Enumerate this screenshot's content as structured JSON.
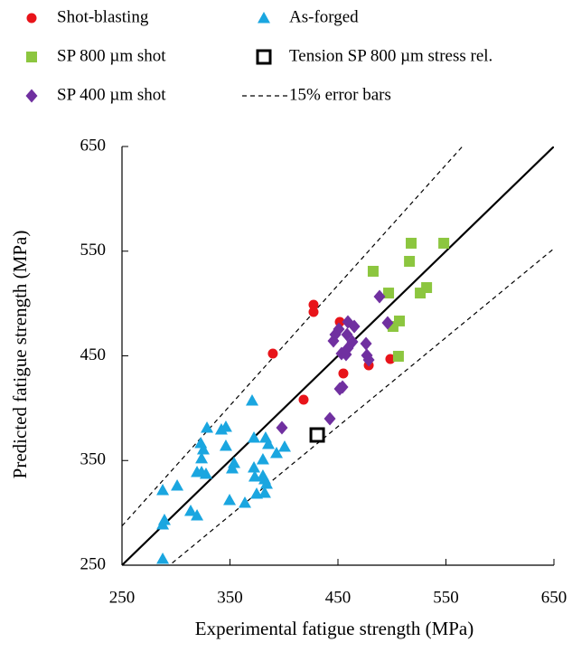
{
  "chart_data": {
    "type": "scatter",
    "x_label": "Experimental fatigue strength (MPa)",
    "y_label": "Predicted fatigue strength (MPa)",
    "xlim": [
      250,
      650
    ],
    "ylim": [
      250,
      650
    ],
    "xticks": [
      250,
      350,
      450,
      550,
      650
    ],
    "yticks": [
      250,
      350,
      450,
      550,
      650
    ],
    "error_band": {
      "name": "15% error bars",
      "percent": 15
    },
    "series": [
      {
        "name": "Shot-blasting",
        "color": "#e8141a",
        "marker": "circle",
        "x": [
          427.4,
          427.4,
          389.7,
          451.7,
          455,
          418.2,
          478.5,
          498.5
        ],
        "y": [
          498.8,
          491.9,
          452.2,
          482.4,
          433.2,
          408.1,
          440.9,
          447
        ]
      },
      {
        "name": "As-forged",
        "color": "#1aa6e0",
        "marker": "triangle",
        "x": [
          287.7,
          287.7,
          289.3,
          287.7,
          301.1,
          313.6,
          319.5,
          319.5,
          323.7,
          323.7,
          325.3,
          323,
          328.7,
          327.8,
          342,
          346.2,
          346.2,
          353.8,
          352.1,
          349.6,
          363.8,
          370.5,
          372.2,
          372.2,
          373,
          374.7,
          380.5,
          380.5,
          382.2,
          383,
          385.6,
          393.1,
          400.6,
          383.9,
          382.2
        ],
        "y": [
          256,
          288.9,
          293.2,
          321.7,
          326,
          301.8,
          297.5,
          339,
          339,
          352,
          360.6,
          366.6,
          381.3,
          337.3,
          379.6,
          382.2,
          364,
          347.6,
          342.4,
          312.2,
          309.6,
          407.2,
          371.8,
          343.3,
          334.7,
          318.3,
          335.5,
          351.1,
          319.1,
          371.8,
          365.8,
          357.1,
          363.2,
          327.8,
          332.1
        ]
      },
      {
        "name": "SP 800 µm shot",
        "color": "#8cc63f",
        "marker": "square",
        "x": [
          482.6,
          517.8,
          516.2,
          548,
          496.9,
          506.9,
          501,
          526.2,
          532.1,
          506
        ],
        "y": [
          530.8,
          557.6,
          540.3,
          557.6,
          510,
          483.3,
          478.1,
          510,
          515.2,
          449.6
        ]
      },
      {
        "name": "Tension SP 800 µm stress rel.",
        "color": "#000000",
        "marker": "open-square",
        "x": [
          430.8
        ],
        "y": [
          374.4
        ]
      },
      {
        "name": "SP 400 µm shot",
        "color": "#7030a0",
        "marker": "diamond",
        "x": [
          488.5,
          496,
          459.2,
          465.1,
          450.8,
          445.8,
          447.5,
          458.4,
          463.4,
          476,
          459.2,
          453.3,
          457.5,
          476.8,
          478.5,
          454.2,
          451.7,
          442.5,
          398.1
        ],
        "y": [
          506.6,
          481.5,
          482.4,
          478.1,
          475.5,
          464.3,
          470.3,
          470.3,
          463.4,
          461.7,
          457.3,
          452.2,
          451.3,
          450.4,
          446.1,
          420.2,
          418.5,
          390,
          381.3
        ]
      }
    ]
  }
}
